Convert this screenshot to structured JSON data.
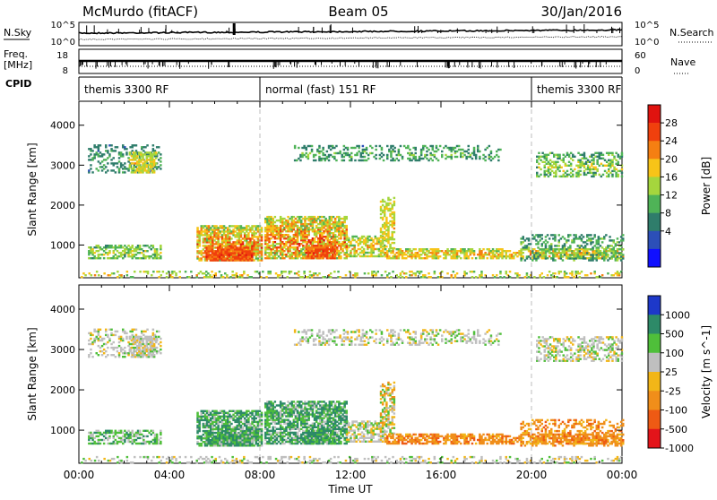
{
  "header": {
    "station": "McMurdo (fitACF)",
    "beam": "Beam 05",
    "date": "30/Jan/2016"
  },
  "strips": {
    "nsky_label": "N.Sky",
    "nsearch_label": "N.Search",
    "noise_ticks": [
      "10^5",
      "10^0"
    ],
    "freq_label_top": "Freq.",
    "freq_label_unit": "[MHz]",
    "freq_ticks": [
      "18",
      "8"
    ],
    "nave_label": "Nave",
    "nave_ticks": [
      "60",
      "0"
    ],
    "cpid_label": "CPID",
    "cpid_segments": [
      {
        "label": "themis 3300 RF",
        "start_h": 0,
        "end_h": 8
      },
      {
        "label": "normal (fast) 151 RF",
        "start_h": 8,
        "end_h": 20
      },
      {
        "label": "themis 3300 RF",
        "start_h": 20,
        "end_h": 24
      }
    ]
  },
  "chart_data": [
    {
      "type": "heatmap",
      "parameter": "Power",
      "colorbar_label": "Power [dB]",
      "colorbar_ticks": [
        "28",
        "24",
        "20",
        "16",
        "12",
        "8",
        "4"
      ],
      "colors": [
        "#1010ff",
        "#2c4fb8",
        "#2f7d6b",
        "#4fb357",
        "#a5d63d",
        "#f7c418",
        "#f57f12",
        "#f0400d",
        "#e0130f"
      ],
      "ylabel": "Slant Range [km]",
      "yticks": [
        "4000",
        "3000",
        "2000",
        "1000"
      ],
      "ylim": [
        180,
        4600
      ],
      "xlim": [
        0,
        24
      ]
    },
    {
      "type": "heatmap",
      "parameter": "Velocity",
      "colorbar_label": "Velocity [m s^-1]",
      "colorbar_ticks": [
        "1000",
        "500",
        "100",
        "25",
        "-25",
        "-100",
        "-500",
        "-1000"
      ],
      "colors": [
        "#1d38c9",
        "#2d8a68",
        "#4fbf3a",
        "#bfbfbf",
        "#f2b618",
        "#f08e1a",
        "#ee5a14",
        "#e3141a"
      ],
      "ylabel": "Slant Range [km]",
      "yticks": [
        "4000",
        "3000",
        "2000",
        "1000"
      ],
      "ylim": [
        180,
        4600
      ],
      "xlim": [
        0,
        24
      ]
    }
  ],
  "xaxis": {
    "label": "Time UT",
    "ticks": [
      "00:00",
      "04:00",
      "08:00",
      "12:00",
      "16:00",
      "20:00",
      "00:00"
    ]
  }
}
